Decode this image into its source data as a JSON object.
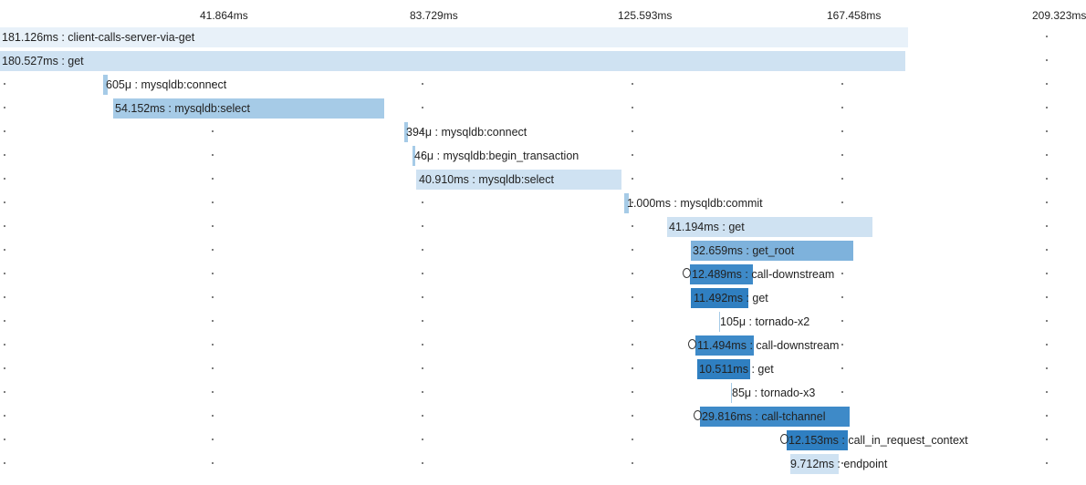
{
  "timeline": {
    "ticks": [
      "41.864ms",
      "83.729ms",
      "125.593ms",
      "167.458ms",
      "209.323ms"
    ]
  },
  "colors": {
    "bar_lightest": "#e8f1f9",
    "bar_light": "#cfe2f2",
    "bar_medium": "#a6cbe7",
    "bar_mid_dark": "#7eb2dc",
    "bar_dark": "#3e8ac8",
    "bar_darkest": "#2f7fc1"
  },
  "spans": [
    {
      "label": "181.126ms : client-calls-server-via-get",
      "color": "bar_lightest"
    },
    {
      "label": "180.527ms : get",
      "color": "bar_light"
    },
    {
      "label": "605μ : mysqldb:connect",
      "color": "bar_medium"
    },
    {
      "label": "54.152ms : mysqldb:select",
      "color": "bar_medium"
    },
    {
      "label": "394μ : mysqldb:connect",
      "color": "bar_medium"
    },
    {
      "label": "46μ : mysqldb:begin_transaction",
      "color": "bar_medium"
    },
    {
      "label": "40.910ms : mysqldb:select",
      "color": "bar_light"
    },
    {
      "label": "1.000ms : mysqldb:commit",
      "color": "bar_medium"
    },
    {
      "label": "41.194ms : get",
      "color": "bar_light"
    },
    {
      "label": "32.659ms : get_root",
      "color": "bar_mid_dark"
    },
    {
      "label": "12.489ms : call-downstream",
      "color": "bar_dark",
      "icon": "circle-icon"
    },
    {
      "label": "11.492ms : get",
      "color": "bar_darkest"
    },
    {
      "label": "105μ : tornado-x2",
      "color": "bar_medium"
    },
    {
      "label": "11.494ms : call-downstream",
      "color": "bar_dark",
      "icon": "circle-icon"
    },
    {
      "label": "10.511ms : get",
      "color": "bar_darkest"
    },
    {
      "label": "85μ : tornado-x3",
      "color": "bar_medium"
    },
    {
      "label": "29.816ms : call-tchannel",
      "color": "bar_dark",
      "icon": "circle-icon"
    },
    {
      "label": "12.153ms : call_in_request_context",
      "color": "bar_darkest",
      "icon": "circle-icon"
    },
    {
      "label": "9.712ms : endpoint",
      "color": "bar_light"
    }
  ]
}
